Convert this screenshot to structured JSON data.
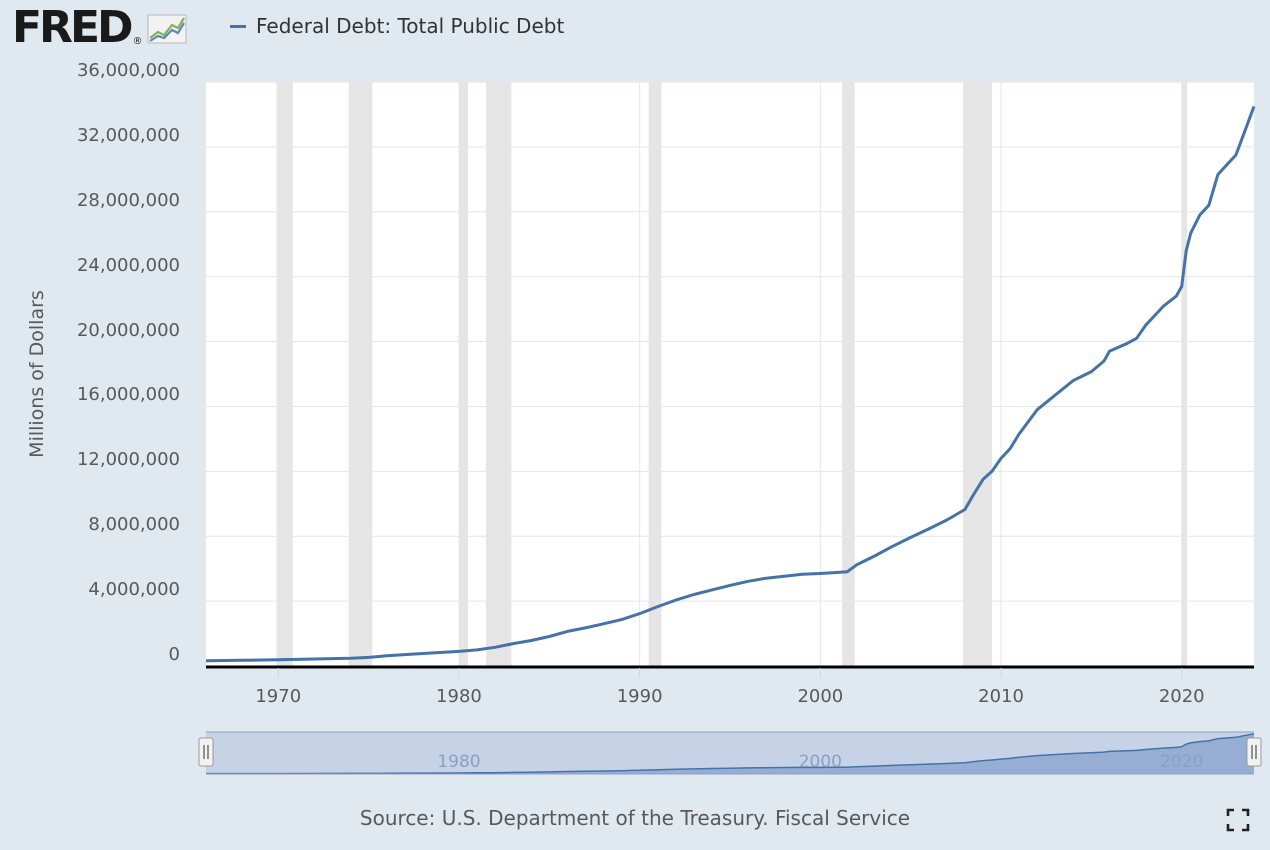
{
  "header": {
    "logo_text": "FRED",
    "logo_mark": "®",
    "logo_icon": "line-chart-icon",
    "legend_label": "Federal Debt: Total Public Debt"
  },
  "source_text": "Source: U.S. Department of the Treasury. Fiscal Service",
  "navigator": {
    "tick_labels": [
      "1980",
      "2000",
      "2020"
    ],
    "left_handle_icon": "grip-icon",
    "right_handle_icon": "grip-icon"
  },
  "colors": {
    "series": "#4572a7",
    "recession": "#e5e5e5",
    "background": "#e1e9f0",
    "navigator_fill": "#c3d0e6"
  },
  "fullscreen_icon": "fullscreen-icon",
  "chart_data": {
    "type": "line",
    "title": "",
    "xlabel": "",
    "ylabel": "Millions of Dollars",
    "xlim": [
      1966.0,
      2024.0
    ],
    "ylim": [
      0,
      36000000
    ],
    "y_ticks": [
      0,
      4000000,
      8000000,
      12000000,
      16000000,
      20000000,
      24000000,
      28000000,
      32000000,
      36000000
    ],
    "y_tick_labels": [
      "0",
      "4,000,000",
      "8,000,000",
      "12,000,000",
      "16,000,000",
      "20,000,000",
      "24,000,000",
      "28,000,000",
      "32,000,000",
      "36,000,000"
    ],
    "x_ticks": [
      1970,
      1980,
      1990,
      2000,
      2010,
      2020
    ],
    "x_tick_labels": [
      "1970",
      "1980",
      "1990",
      "2000",
      "2010",
      "2020"
    ],
    "recessions": [
      [
        1969.9,
        1970.8
      ],
      [
        1973.9,
        1975.2
      ],
      [
        1980.0,
        1980.5
      ],
      [
        1981.5,
        1982.9
      ],
      [
        1990.5,
        1991.2
      ],
      [
        2001.2,
        2001.9
      ],
      [
        2007.9,
        2009.5
      ],
      [
        2020.0,
        2020.3
      ]
    ],
    "series": [
      {
        "name": "Federal Debt: Total Public Debt",
        "x": [
          1966.0,
          1968.0,
          1970.0,
          1972.0,
          1974.0,
          1975.0,
          1976.0,
          1978.0,
          1980.0,
          1981.0,
          1982.0,
          1983.0,
          1984.0,
          1985.0,
          1986.0,
          1987.0,
          1988.0,
          1989.0,
          1990.0,
          1991.0,
          1992.0,
          1993.0,
          1994.0,
          1995.0,
          1996.0,
          1997.0,
          1998.0,
          1999.0,
          2000.0,
          2001.0,
          2001.5,
          2002.0,
          2003.0,
          2004.0,
          2005.0,
          2006.0,
          2007.0,
          2008.0,
          2008.5,
          2009.0,
          2009.5,
          2010.0,
          2010.5,
          2011.0,
          2012.0,
          2013.0,
          2014.0,
          2015.0,
          2015.7,
          2016.0,
          2017.0,
          2017.5,
          2018.0,
          2019.0,
          2019.7,
          2020.0,
          2020.25,
          2020.5,
          2021.0,
          2021.5,
          2022.0,
          2022.5,
          2023.0,
          2023.5,
          2024.0
        ],
        "values": [
          320000,
          350000,
          380000,
          430000,
          480000,
          530000,
          630000,
          770000,
          900000,
          990000,
          1150000,
          1380000,
          1570000,
          1820000,
          2130000,
          2350000,
          2600000,
          2860000,
          3230000,
          3660000,
          4060000,
          4410000,
          4690000,
          4970000,
          5220000,
          5410000,
          5530000,
          5660000,
          5700000,
          5770000,
          5810000,
          6230000,
          6780000,
          7380000,
          7930000,
          8450000,
          9000000,
          9650000,
          10600000,
          11500000,
          12000000,
          12800000,
          13400000,
          14300000,
          15800000,
          16700000,
          17600000,
          18150000,
          18800000,
          19400000,
          19900000,
          20200000,
          21000000,
          22200000,
          22800000,
          23400000,
          25600000,
          26700000,
          27800000,
          28400000,
          30300000,
          30900000,
          31500000,
          33000000,
          34500000
        ]
      }
    ]
  }
}
